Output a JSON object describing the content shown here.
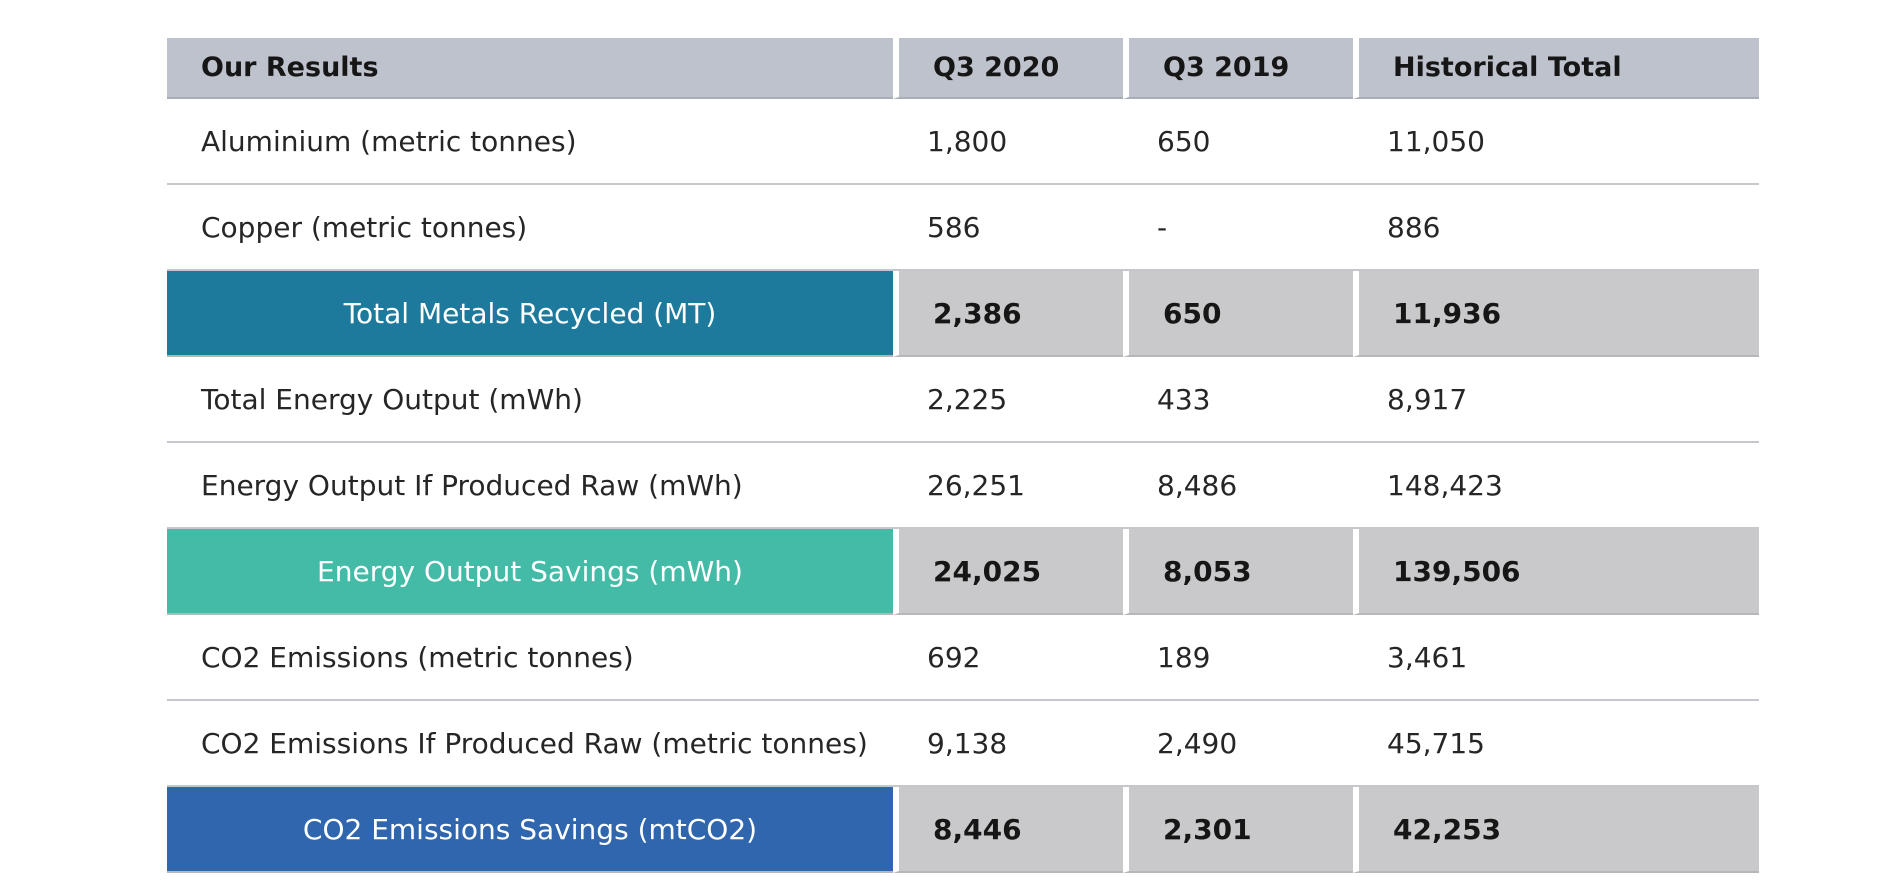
{
  "table": {
    "headers": [
      "Our Results",
      "Q3 2020",
      "Q3 2019",
      "Historical Total"
    ],
    "rows": [
      {
        "label": "Aluminium (metric tonnes)",
        "q3_2020": "1,800",
        "q3_2019": "650",
        "historical": "11,050"
      },
      {
        "label": "Copper (metric tonnes)",
        "q3_2020": "586",
        "q3_2019": "-",
        "historical": "886"
      },
      {
        "label": "Total Metals Recycled (MT)",
        "q3_2020": "2,386",
        "q3_2019": "650",
        "historical": "11,936"
      },
      {
        "label": "Total Energy Output  (mWh)",
        "q3_2020": "2,225",
        "q3_2019": "433",
        "historical": "8,917"
      },
      {
        "label": "Energy Output If Produced Raw (mWh)",
        "q3_2020": "26,251",
        "q3_2019": "8,486",
        "historical": "148,423"
      },
      {
        "label": "Energy Output Savings (mWh)",
        "q3_2020": "24,025",
        "q3_2019": "8,053",
        "historical": "139,506"
      },
      {
        "label": "CO2 Emissions (metric tonnes)",
        "q3_2020": "692",
        "q3_2019": "189",
        "historical": "3,461"
      },
      {
        "label": "CO2 Emissions If Produced Raw (metric tonnes)",
        "q3_2020": "9,138",
        "q3_2019": "2,490",
        "historical": "45,715"
      },
      {
        "label": "CO2 Emissions Savings (mtCO2)",
        "q3_2020": "8,446",
        "q3_2019": "2,301",
        "historical": "42,253"
      }
    ]
  },
  "colors": {
    "header_bg": "#bec2cc",
    "total_metals": "#1e7a9c",
    "total_energy": "#44bba6",
    "total_co2": "#2f66ae",
    "total_value_bg": "#c9c9cb"
  }
}
